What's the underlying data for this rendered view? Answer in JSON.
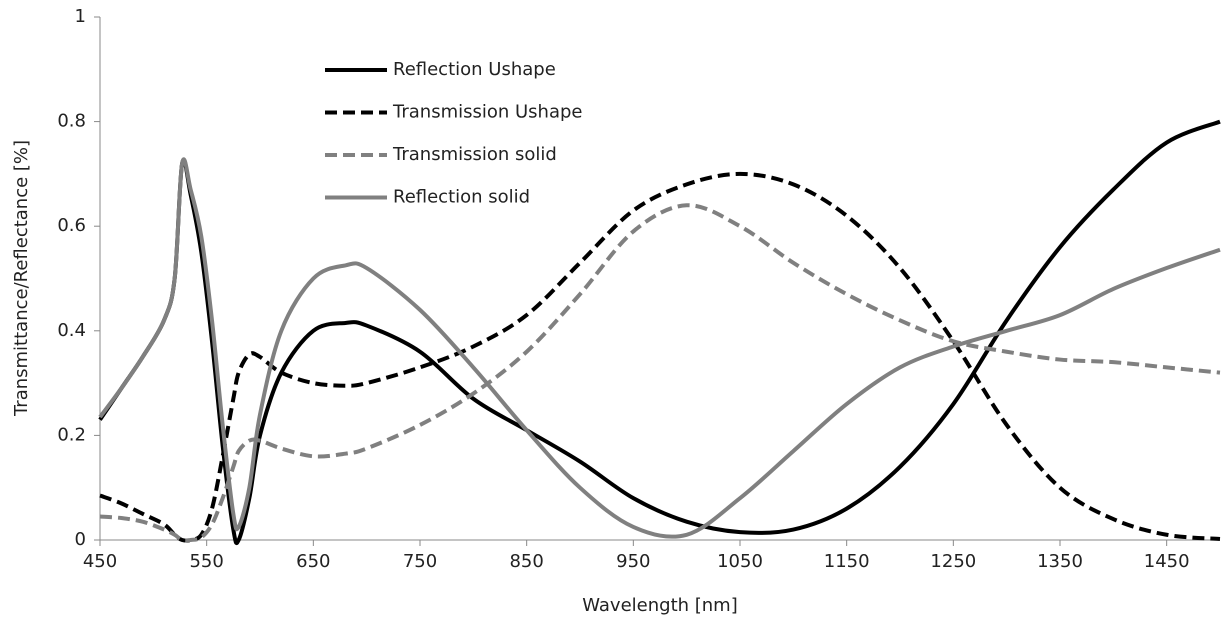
{
  "chart_data": {
    "type": "line",
    "x_label": "Wavelength [nm]",
    "y_label": "Transmittance/Reflectance [%]",
    "x": [
      450,
      470,
      490,
      510,
      520,
      527,
      535,
      545,
      555,
      565,
      575,
      580,
      590,
      600,
      620,
      650,
      680,
      700,
      750,
      800,
      850,
      900,
      950,
      1000,
      1050,
      1100,
      1150,
      1200,
      1250,
      1300,
      1350,
      1400,
      1450,
      1500
    ],
    "series": [
      {
        "name": "Reflection Ushape",
        "color": "#000000",
        "dashed": false,
        "values": [
          0.23,
          0.29,
          0.35,
          0.42,
          0.5,
          0.72,
          0.66,
          0.55,
          0.38,
          0.18,
          0.02,
          0.0,
          0.08,
          0.2,
          0.32,
          0.4,
          0.415,
          0.41,
          0.36,
          0.27,
          0.21,
          0.15,
          0.08,
          0.035,
          0.015,
          0.02,
          0.06,
          0.14,
          0.26,
          0.42,
          0.56,
          0.67,
          0.76,
          0.8
        ]
      },
      {
        "name": "Transmission Ushape",
        "color": "#000000",
        "dashed": true,
        "values": [
          0.085,
          0.07,
          0.05,
          0.03,
          0.01,
          0.0,
          0.0,
          0.01,
          0.06,
          0.16,
          0.27,
          0.32,
          0.355,
          0.35,
          0.32,
          0.3,
          0.295,
          0.3,
          0.33,
          0.37,
          0.43,
          0.53,
          0.63,
          0.68,
          0.7,
          0.68,
          0.62,
          0.52,
          0.38,
          0.22,
          0.1,
          0.04,
          0.01,
          0.002
        ]
      },
      {
        "name": "Transmission solid",
        "color": "#808080",
        "dashed": true,
        "values": [
          0.045,
          0.042,
          0.035,
          0.02,
          0.01,
          0.0,
          0.0,
          0.005,
          0.03,
          0.08,
          0.14,
          0.17,
          0.19,
          0.19,
          0.175,
          0.16,
          0.165,
          0.175,
          0.22,
          0.28,
          0.36,
          0.47,
          0.59,
          0.64,
          0.6,
          0.53,
          0.47,
          0.42,
          0.38,
          0.36,
          0.345,
          0.34,
          0.33,
          0.32
        ]
      },
      {
        "name": "Reflection solid",
        "color": "#808080",
        "dashed": false,
        "values": [
          0.235,
          0.29,
          0.35,
          0.42,
          0.5,
          0.72,
          0.67,
          0.58,
          0.42,
          0.22,
          0.05,
          0.025,
          0.1,
          0.24,
          0.4,
          0.5,
          0.525,
          0.52,
          0.44,
          0.33,
          0.21,
          0.1,
          0.025,
          0.01,
          0.08,
          0.17,
          0.26,
          0.33,
          0.37,
          0.4,
          0.43,
          0.48,
          0.52,
          0.555
        ]
      }
    ],
    "xlim": [
      450,
      1500
    ],
    "xticks": [
      450,
      550,
      650,
      750,
      850,
      950,
      1050,
      1150,
      1250,
      1350,
      1450
    ],
    "ylim": [
      0,
      1
    ],
    "yticks": [
      0,
      0.2,
      0.4,
      0.6,
      0.8,
      1
    ],
    "grid": false,
    "legend": "upper left"
  }
}
